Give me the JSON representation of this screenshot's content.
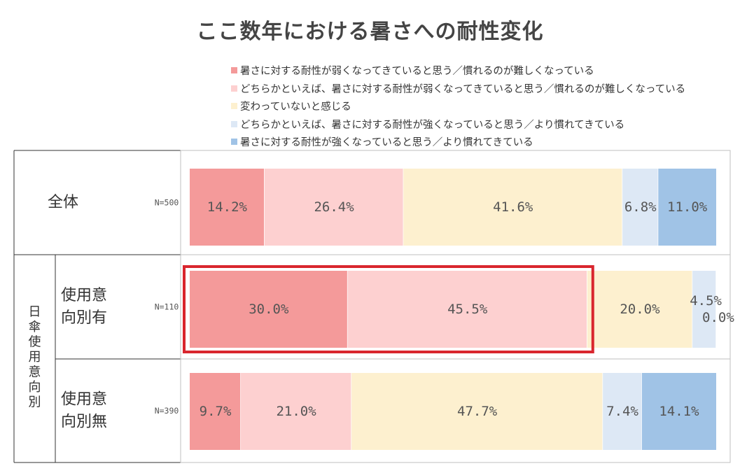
{
  "title": "ここ数年における暑さへの耐性変化",
  "chart_data": {
    "type": "bar",
    "orientation": "horizontal-stacked-100",
    "title": "ここ数年における暑さへの耐性変化",
    "legend_position": "top",
    "series": [
      {
        "name": "暑さに対する耐性が弱くなってきていると思う／慣れるのが難しくなっている",
        "color": "#f49a9a"
      },
      {
        "name": "どちらかといえば、暑さに対する耐性が弱くなってきていると思う／慣れるのが難しくなっている",
        "color": "#fdd0d0"
      },
      {
        "name": "変わっていないと感じる",
        "color": "#fdf0cf"
      },
      {
        "name": "どちらかといえば、暑さに対する耐性が強くなっていると思う／より慣れてきている",
        "color": "#dde8f5"
      },
      {
        "name": "暑さに対する耐性が強くなっていると思う／より慣れてきている",
        "color": "#a0c3e6"
      }
    ],
    "group_label": "日傘使用意向別",
    "rows": [
      {
        "label": "全体",
        "n": "N=500",
        "values": [
          14.2,
          26.4,
          41.6,
          6.8,
          11.0
        ],
        "value_labels": [
          "14.2%",
          "26.4%",
          "41.6%",
          "6.8%",
          "11.0%"
        ]
      },
      {
        "label": "使用意向別有",
        "label_lines": [
          "使用意",
          "向別有"
        ],
        "n": "N=110",
        "values": [
          30.0,
          45.5,
          20.0,
          4.5,
          0.0
        ],
        "value_labels": [
          "30.0%",
          "45.5%",
          "20.0%",
          "4.5%",
          "0.0%"
        ]
      },
      {
        "label": "使用意向別無",
        "label_lines": [
          "使用意",
          "向別無"
        ],
        "n": "N=390",
        "values": [
          9.7,
          21.0,
          47.7,
          7.4,
          14.1
        ],
        "value_labels": [
          "9.7%",
          "21.0%",
          "47.7%",
          "7.4%",
          "14.1%"
        ]
      }
    ],
    "highlight": {
      "row": 1,
      "series": [
        0,
        1
      ],
      "color": "#d9262e"
    }
  }
}
